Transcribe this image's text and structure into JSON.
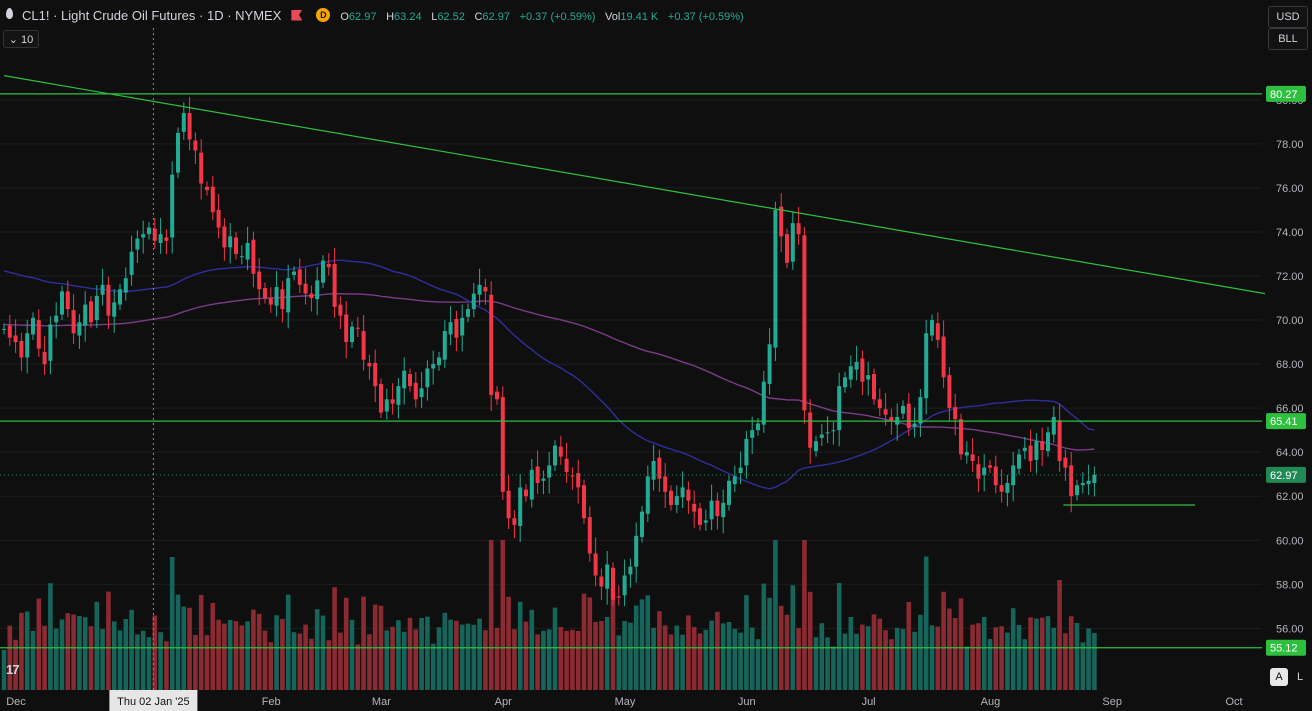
{
  "header": {
    "symbol_title": "CL1! · Light Crude Oil Futures · 1D · NYMEX",
    "badge_letter": "D",
    "ohlc": [
      {
        "label": "O",
        "value": "62.97"
      },
      {
        "label": "H",
        "value": "63.24"
      },
      {
        "label": "L",
        "value": "62.52"
      },
      {
        "label": "C",
        "value": "62.97"
      },
      {
        "label": "",
        "value": "+0.37 (+0.59%)"
      },
      {
        "label": "Vol",
        "value": "19.41 K"
      },
      {
        "label": "",
        "value": "+0.37 (+0.59%)"
      }
    ]
  },
  "interval_pill": "⌄ 10",
  "currency": "USD",
  "unit": "BLL",
  "logo": "17",
  "auto_button": "A",
  "log_button": "L",
  "colors": {
    "up": "#22ab94",
    "down": "#f23645",
    "up_vol": "#16655a",
    "down_vol": "#8b2a31",
    "hline": "#2fbf3f",
    "trendline": "#2fbf3f",
    "ma_fast": "#2f2f9c",
    "ma_slow": "#7b3c88",
    "bg": "#0f0f0f",
    "grid": "#1e1e1e"
  },
  "chart_data": {
    "type": "candlestick",
    "y_axis": {
      "min": 53.2,
      "max": 81.9,
      "ticks": [
        56,
        58,
        60,
        62,
        64,
        66,
        68,
        70,
        72,
        74,
        76,
        78,
        80
      ]
    },
    "x_axis": {
      "labels": [
        {
          "text": "Dec",
          "bar": 0
        },
        {
          "text": "Thu 02 Jan '25",
          "bar": 23,
          "highlight": true
        },
        {
          "text": "Feb",
          "bar": 44
        },
        {
          "text": "Mar",
          "bar": 63
        },
        {
          "text": "Apr",
          "bar": 84
        },
        {
          "text": "May",
          "bar": 105
        },
        {
          "text": "Jun",
          "bar": 126
        },
        {
          "text": "Jul",
          "bar": 147
        },
        {
          "text": "Aug",
          "bar": 168
        },
        {
          "text": "Sep",
          "bar": 189
        },
        {
          "text": "Oct",
          "bar": 210
        }
      ]
    },
    "closes": [
      69.6,
      69.2,
      69.0,
      68.3,
      69.4,
      70.1,
      68.7,
      68.0,
      69.8,
      70.2,
      71.3,
      70.5,
      69.4,
      69.9,
      70.7,
      69.9,
      71.1,
      71.6,
      70.2,
      70.8,
      71.4,
      71.9,
      73.1,
      73.7,
      73.9,
      74.2,
      73.6,
      73.9,
      73.6,
      76.6,
      78.5,
      79.4,
      78.2,
      77.7,
      76.2,
      75.9,
      74.9,
      74.2,
      73.3,
      73.8,
      73.0,
      72.9,
      73.5,
      72.1,
      71.4,
      71.0,
      70.7,
      71.5,
      70.5,
      71.9,
      72.2,
      71.6,
      71.2,
      71.0,
      71.8,
      72.7,
      72.4,
      70.6,
      70.2,
      69.0,
      69.7,
      69.6,
      68.2,
      67.9,
      67.0,
      65.8,
      66.4,
      66.2,
      67.0,
      67.7,
      67.0,
      66.4,
      66.9,
      67.8,
      68.0,
      68.3,
      69.5,
      69.9,
      69.2,
      70.1,
      70.5,
      71.2,
      71.6,
      71.3,
      66.6,
      66.4,
      62.2,
      61.0,
      60.7,
      62.4,
      62.0,
      63.2,
      62.6,
      62.8,
      63.4,
      64.3,
      63.8,
      63.1,
      62.9,
      62.4,
      61.0,
      59.4,
      58.4,
      57.9,
      58.9,
      57.3,
      57.4,
      58.4,
      58.8,
      60.2,
      61.3,
      62.9,
      63.6,
      62.8,
      62.2,
      61.6,
      62.0,
      62.4,
      61.8,
      61.3,
      60.7,
      60.9,
      61.8,
      61.1,
      61.7,
      62.7,
      62.9,
      63.3,
      64.6,
      65.0,
      65.3,
      67.2,
      68.9,
      75.0,
      73.8,
      72.6,
      74.4,
      73.9,
      65.9,
      64.2,
      64.5,
      64.8,
      64.9,
      65.0,
      67.0,
      67.4,
      67.9,
      68.1,
      67.2,
      67.5,
      66.4,
      66.0,
      65.7,
      65.4,
      65.6,
      66.1,
      65.1,
      65.3,
      66.5,
      69.4,
      70.0,
      69.1,
      67.4,
      66.0,
      65.5,
      63.9,
      64.0,
      63.6,
      62.8,
      63.3,
      63.3,
      62.5,
      62.2,
      62.6,
      63.4,
      63.9,
      64.2,
      63.6,
      64.5,
      64.1,
      64.9,
      65.6,
      63.6,
      63.3,
      62.0,
      62.5,
      62.6,
      62.7,
      62.97
    ],
    "key_levels": [
      80.27,
      65.41,
      62.97,
      55.12
    ],
    "support_level": 61.6,
    "trendline": {
      "from": {
        "bar": 0,
        "value": 81.1
      },
      "to": {
        "bar": 195,
        "value": 71.2
      }
    }
  }
}
